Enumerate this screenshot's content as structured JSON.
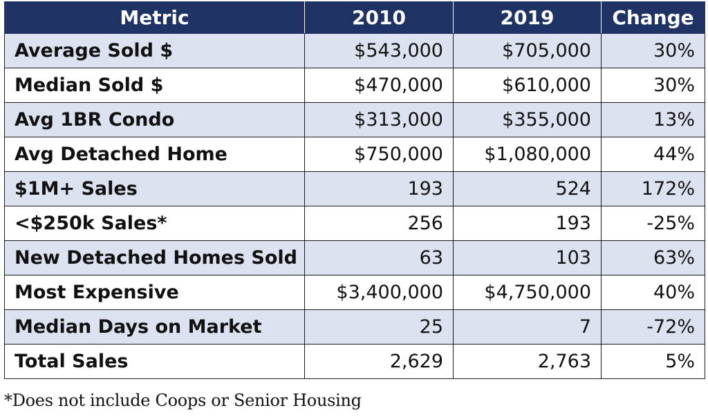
{
  "table": {
    "headers": {
      "metric": "Metric",
      "y2010": "2010",
      "y2019": "2019",
      "change": "Change"
    },
    "rows": [
      {
        "metric": "Average Sold $",
        "y2010": "$543,000",
        "y2019": "$705,000",
        "change": "30%"
      },
      {
        "metric": "Median Sold $",
        "y2010": "$470,000",
        "y2019": "$610,000",
        "change": "30%"
      },
      {
        "metric": "Avg 1BR Condo",
        "y2010": "$313,000",
        "y2019": "$355,000",
        "change": "13%"
      },
      {
        "metric": "Avg Detached Home",
        "y2010": "$750,000",
        "y2019": "$1,080,000",
        "change": "44%"
      },
      {
        "metric": "$1M+ Sales",
        "y2010": "193",
        "y2019": "524",
        "change": "172%"
      },
      {
        "metric": "<$250k Sales*",
        "y2010": "256",
        "y2019": "193",
        "change": "-25%"
      },
      {
        "metric": "New Detached Homes Sold",
        "y2010": "63",
        "y2019": "103",
        "change": "63%"
      },
      {
        "metric": "Most Expensive",
        "y2010": "$3,400,000",
        "y2019": "$4,750,000",
        "change": "40%"
      },
      {
        "metric": "Median Days on Market",
        "y2010": "25",
        "y2019": "7",
        "change": "-72%"
      },
      {
        "metric": "Total Sales",
        "y2010": "2,629",
        "y2019": "2,763",
        "change": "5%"
      }
    ]
  },
  "footnote": "*Does not include Coops or Senior Housing",
  "colors": {
    "header_bg": "#1e3264",
    "header_text": "#ffffff",
    "stripe_bg": "#dde2f0",
    "plain_bg": "#ffffff"
  }
}
